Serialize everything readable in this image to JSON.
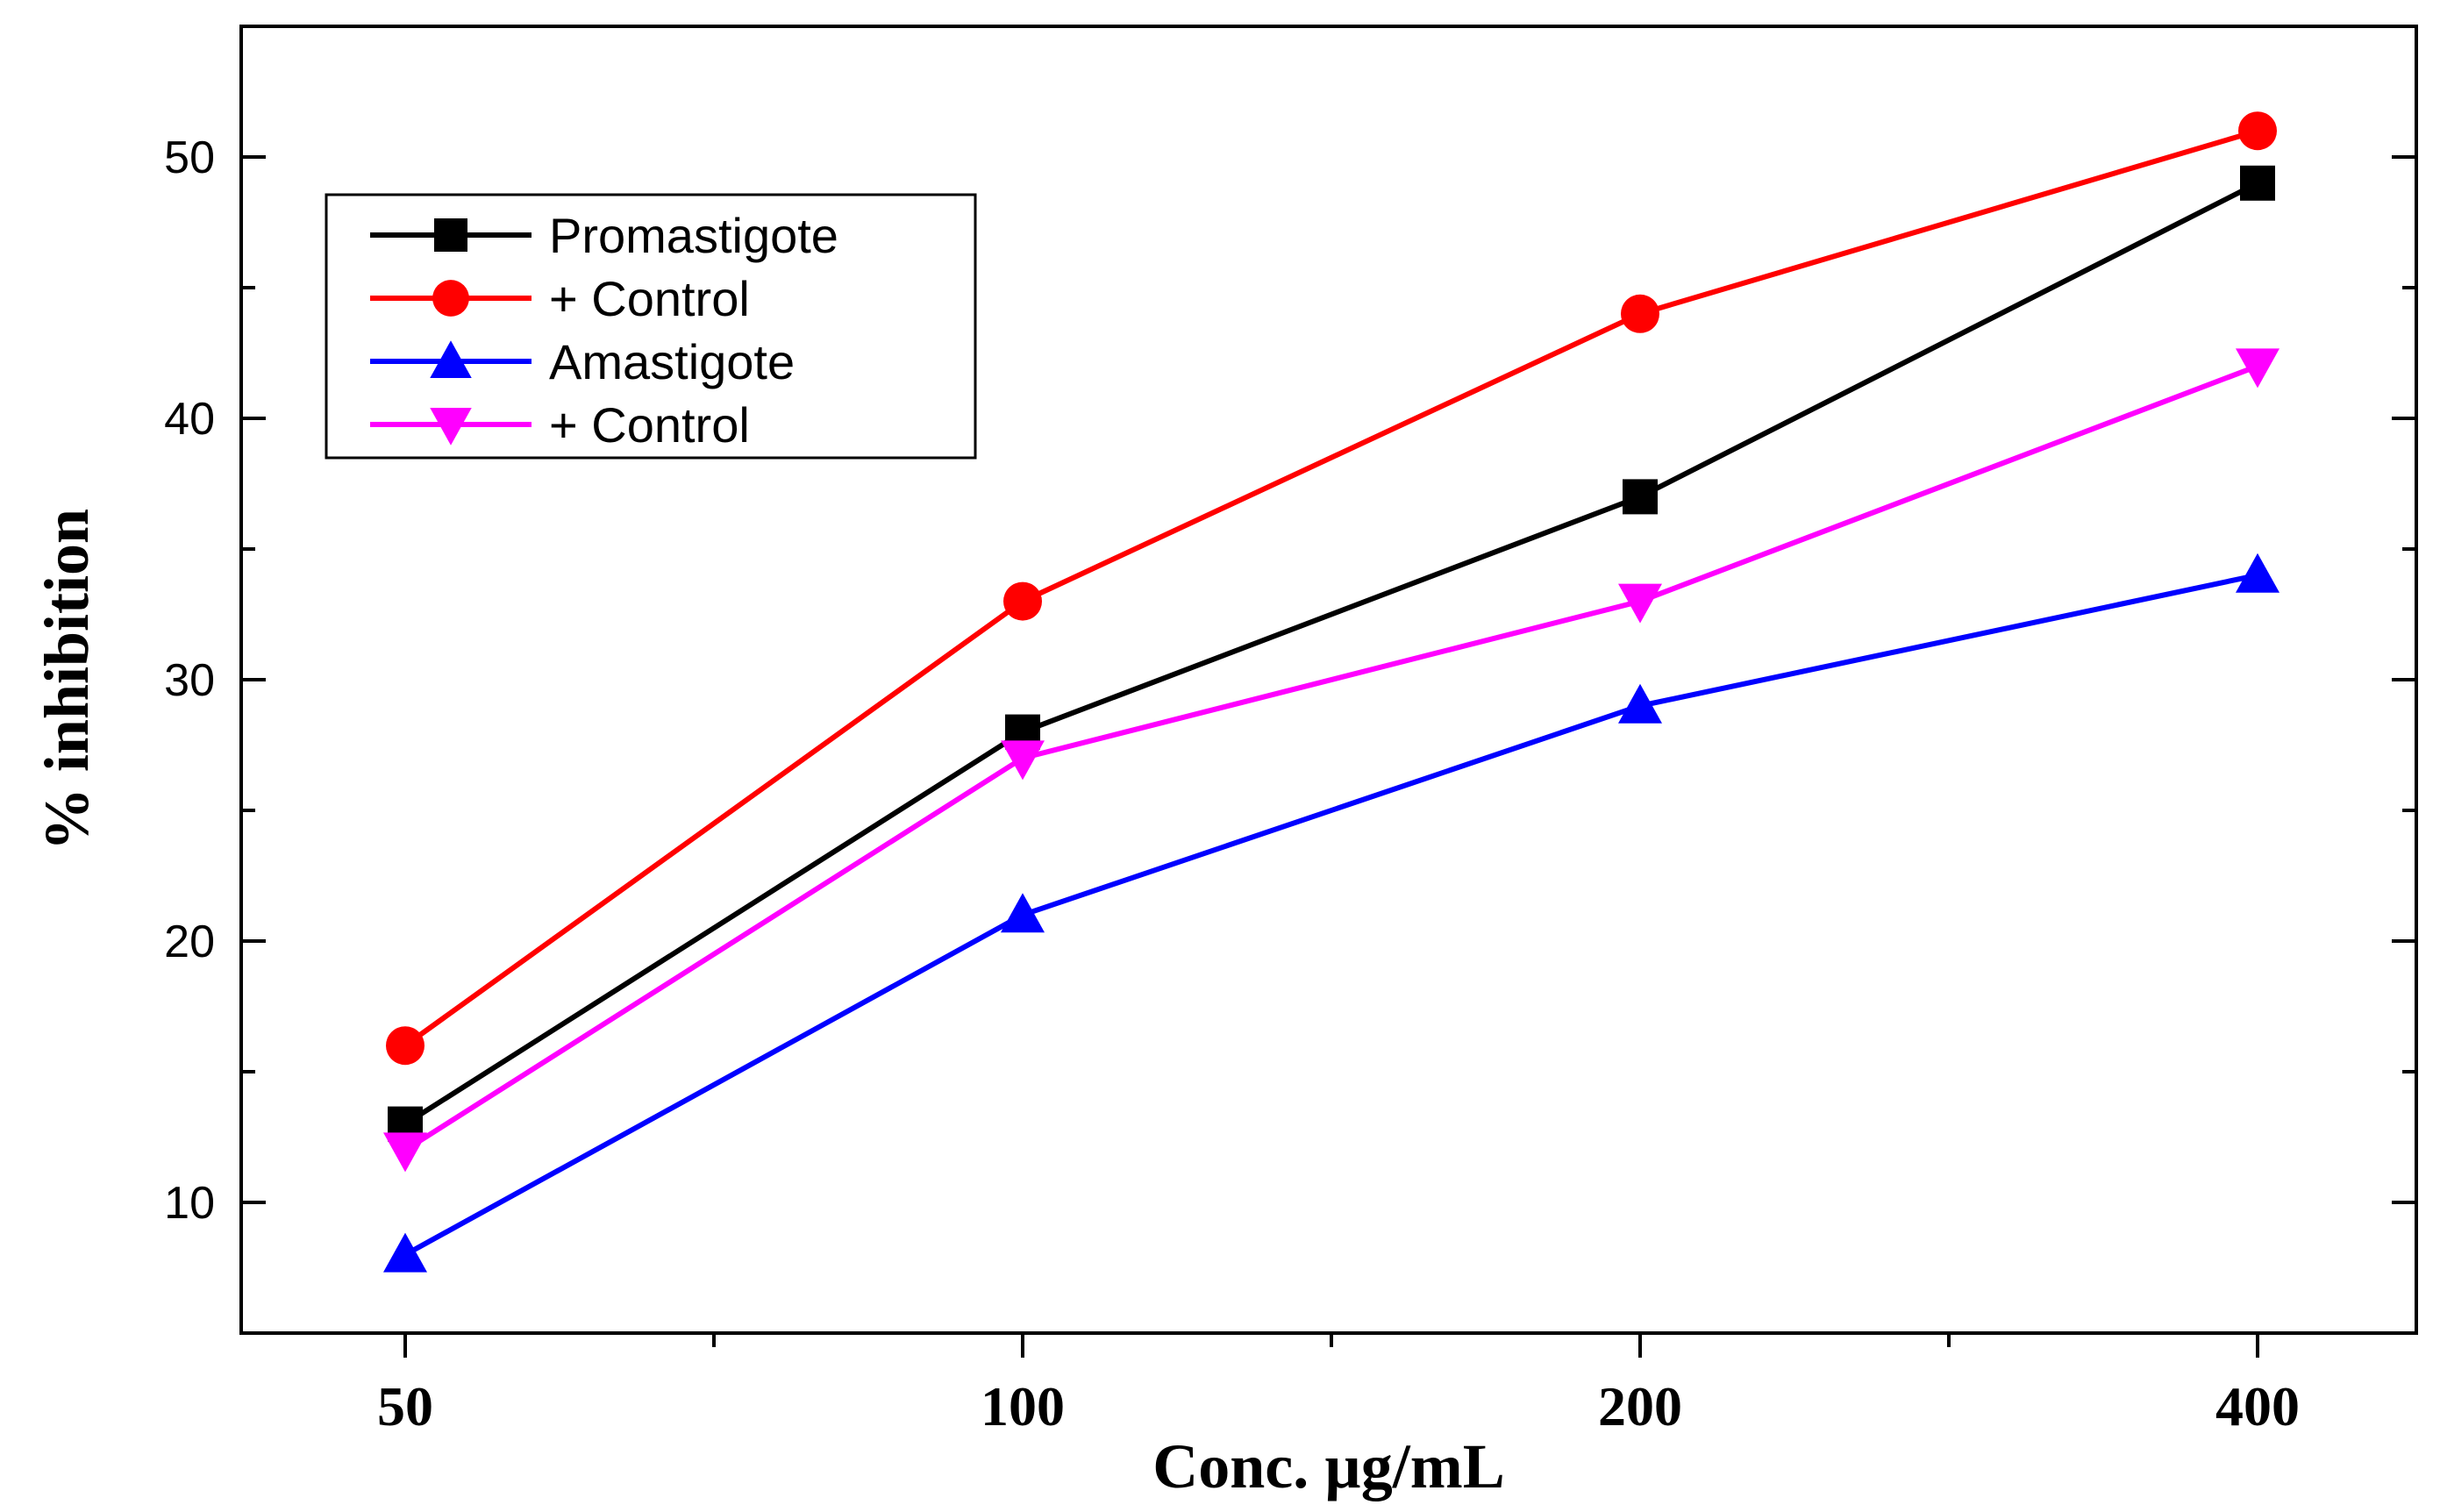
{
  "chart_data": {
    "type": "line",
    "title": "",
    "xlabel": "Conc. µg/mL",
    "ylabel": "% inhibition",
    "categories": [
      "50",
      "100",
      "200",
      "400"
    ],
    "ylim": [
      5,
      55
    ],
    "y_ticks": [
      10,
      20,
      30,
      40,
      50
    ],
    "y_tick_labels": [
      "10",
      "20",
      "30",
      "40",
      "50"
    ],
    "grid": false,
    "legend_position": "top-left",
    "series": [
      {
        "name": "Promastigote",
        "values": [
          13,
          28,
          37,
          49
        ],
        "color": "#000000",
        "marker": "square"
      },
      {
        "name": "+ Control",
        "values": [
          16,
          33,
          44,
          51
        ],
        "color": "#ff0000",
        "marker": "circle"
      },
      {
        "name": "Amastigote",
        "values": [
          8,
          21,
          29,
          34
        ],
        "color": "#0000ff",
        "marker": "triangle-up"
      },
      {
        "name": "+ Control",
        "values": [
          12,
          27,
          33,
          42
        ],
        "color": "#ff00ff",
        "marker": "triangle-down"
      }
    ]
  }
}
